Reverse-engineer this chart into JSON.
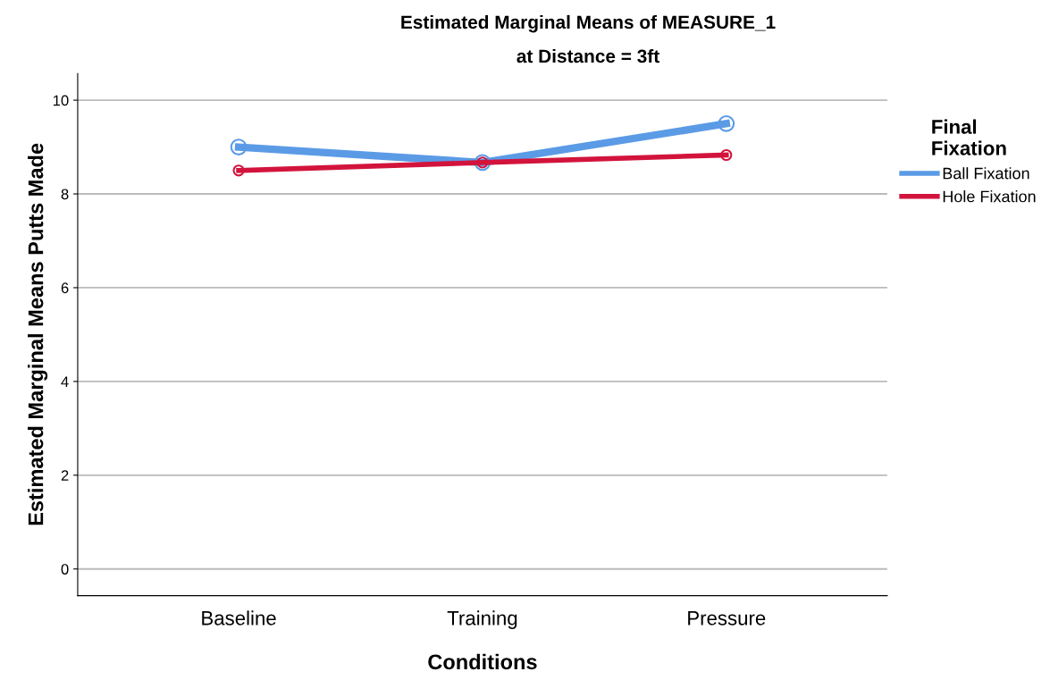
{
  "chart_data": {
    "type": "line",
    "title": "Estimated Marginal Means of MEASURE_1",
    "subtitle": "at Distance = 3ft",
    "xlabel": "Conditions",
    "ylabel": "Estimated Marginal Means Putts Made",
    "legend_title": "Final\nFixation",
    "categories": [
      "Baseline",
      "Training",
      "Pressure"
    ],
    "series": [
      {
        "name": "Ball Fixation",
        "color": "#5b9be6",
        "values": [
          9.0,
          8.67,
          9.5
        ]
      },
      {
        "name": "Hole Fixation",
        "color": "#d2143c",
        "values": [
          8.5,
          8.67,
          8.83
        ]
      }
    ],
    "ylim": [
      -0.57,
      10.57
    ],
    "yticks": [
      0,
      2,
      4,
      6,
      8,
      10
    ],
    "grid": "y",
    "legend": "right",
    "marker": "circle",
    "line_style": "solid"
  }
}
